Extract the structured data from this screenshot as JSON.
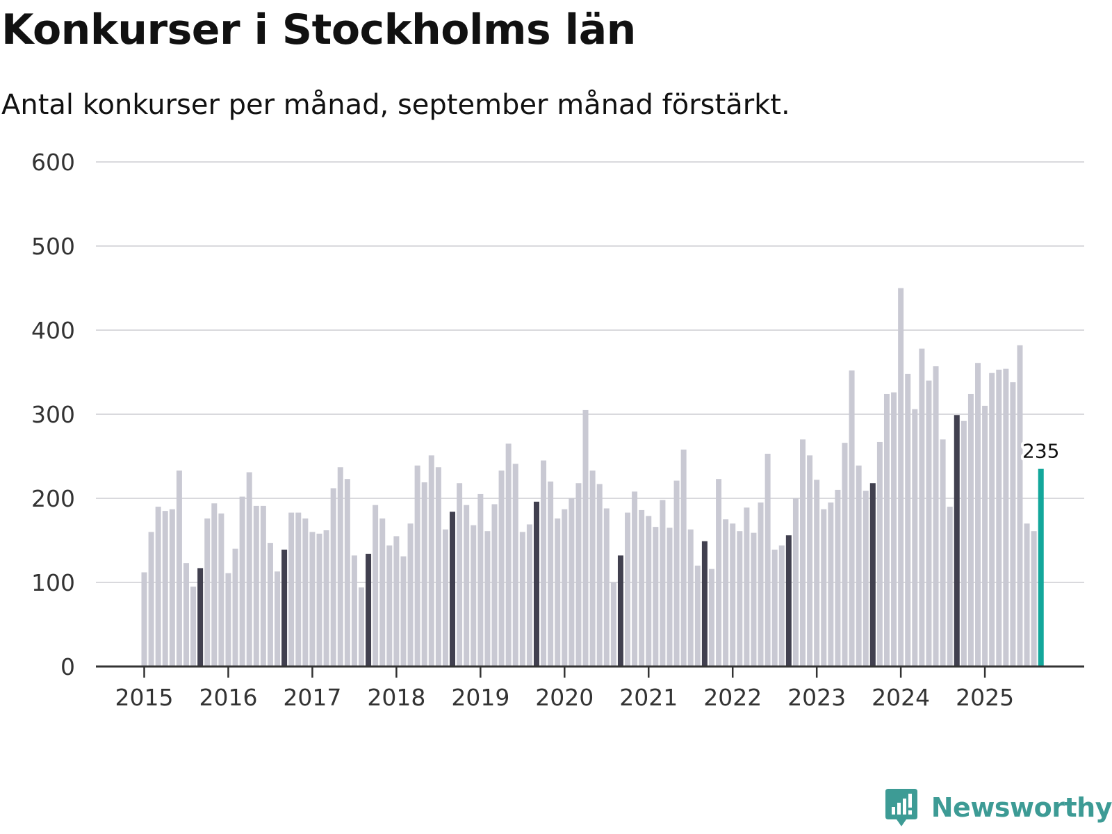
{
  "header": {
    "title": "Konkurser i Stockholms län",
    "subtitle": "Antal konkurser per månad, september månad förstärkt."
  },
  "brand": {
    "name": "Newsworthy",
    "logo_icon": "bar-chart-speech-bubble-icon"
  },
  "colors": {
    "bar": "#c9c9d3",
    "highlight": "#41404f",
    "latest": "#13a79b",
    "grid": "#d9d9dd",
    "axis": "#333333",
    "brand": "#3d9b95"
  },
  "chart_data": {
    "type": "bar",
    "title": "Konkurser i Stockholms län",
    "subtitle": "Antal konkurser per månad, september månad förstärkt.",
    "xlabel": "",
    "ylabel": "",
    "ylim": [
      0,
      600
    ],
    "yticks": [
      0,
      100,
      200,
      300,
      400,
      500,
      600
    ],
    "grid": true,
    "xtick_labels": [
      "2015",
      "2016",
      "2017",
      "2018",
      "2019",
      "2020",
      "2021",
      "2022",
      "2023",
      "2024",
      "2025"
    ],
    "start": "2015-01",
    "end": "2025-09",
    "highlight_month": "september",
    "latest_label": "235",
    "values": [
      112,
      160,
      190,
      185,
      187,
      233,
      123,
      95,
      117,
      176,
      194,
      182,
      111,
      140,
      202,
      231,
      191,
      191,
      147,
      113,
      139,
      183,
      183,
      176,
      160,
      158,
      162,
      212,
      237,
      223,
      132,
      94,
      134,
      192,
      176,
      144,
      155,
      131,
      170,
      239,
      219,
      251,
      237,
      163,
      184,
      218,
      192,
      168,
      205,
      161,
      193,
      233,
      265,
      241,
      160,
      169,
      196,
      245,
      220,
      176,
      187,
      200,
      218,
      305,
      233,
      217,
      188,
      100,
      132,
      183,
      208,
      186,
      179,
      166,
      198,
      165,
      221,
      258,
      163,
      120,
      149,
      116,
      223,
      175,
      170,
      161,
      189,
      159,
      195,
      253,
      139,
      144,
      156,
      200,
      270,
      251,
      222,
      187,
      195,
      210,
      266,
      352,
      239,
      209,
      218,
      267,
      324,
      326,
      450,
      348,
      306,
      378,
      340,
      357,
      270,
      190,
      299,
      292,
      324,
      361,
      310,
      349,
      353,
      354,
      338,
      382,
      170,
      161,
      235
    ]
  }
}
